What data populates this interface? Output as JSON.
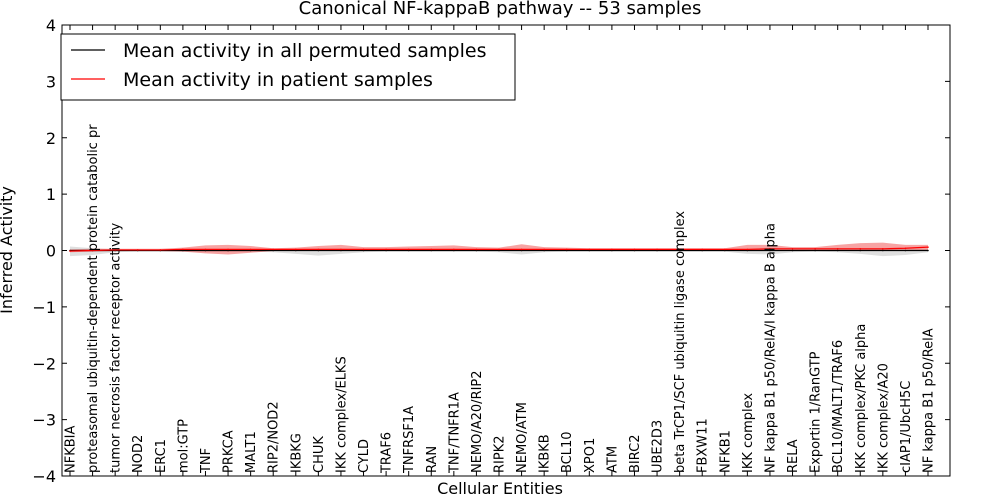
{
  "chart_data": {
    "type": "line",
    "title": "Canonical NF-kappaB pathway -- 53 samples",
    "xlabel": "Cellular Entities",
    "ylabel": "Inferred Activity",
    "ylim": [
      -4,
      4
    ],
    "yticks": [
      "4",
      "3",
      "2",
      "1",
      "0",
      "−1",
      "−2",
      "−3",
      "−4"
    ],
    "grid": false,
    "legend_position": "top-left",
    "categories": [
      "NFKBIA",
      "proteasomal ubiquitin-dependent protein catabolic pr",
      "tumor necrosis factor receptor activity",
      "NOD2",
      "ERC1",
      "mol:GTP",
      "TNF",
      "PRKCA",
      "MALT1",
      "RIP2/NOD2",
      "IKBKG",
      "CHUK",
      "IKK complex/ELKS",
      "CYLD",
      "TRAF6",
      "TNFRSF1A",
      "RAN",
      "TNF/TNFR1A",
      "NEMO/A20/RIP2",
      "RIPK2",
      "NEMO/ATM",
      "IKBKB",
      "BCL10",
      "XPO1",
      "ATM",
      "BIRC2",
      "UBE2D3",
      "beta TrCP1/SCF ubiquitin ligase complex",
      "FBXW11",
      "NFKB1",
      "IKK complex",
      "NF kappa B1 p50/RelA/I kappa B alpha",
      "RELA",
      "Exportin 1/RanGTP",
      "BCL10/MALT1/TRAF6",
      "IKK complex/PKC alpha",
      "IKK complex/A20",
      "cIAP1/UbcH5C",
      "NF kappa B1 p50/RelA"
    ],
    "series": [
      {
        "name": "Mean activity in all permuted samples",
        "color": "#000000",
        "values": [
          0,
          0,
          0,
          0,
          0,
          0,
          0,
          0,
          0,
          0,
          0,
          0,
          0,
          0,
          0,
          0,
          0,
          0,
          0,
          0,
          0,
          0,
          0,
          0,
          0,
          0,
          0,
          0,
          0,
          0,
          0,
          0,
          0,
          0,
          0,
          0,
          0,
          0,
          0
        ],
        "lower": [
          -0.1,
          -0.08,
          -0.03,
          -0.02,
          -0.02,
          -0.02,
          -0.02,
          -0.02,
          -0.02,
          -0.03,
          -0.06,
          -0.09,
          -0.06,
          -0.03,
          -0.02,
          -0.02,
          -0.02,
          -0.02,
          -0.02,
          -0.03,
          -0.07,
          -0.03,
          -0.02,
          -0.02,
          -0.02,
          -0.02,
          -0.02,
          -0.02,
          -0.02,
          -0.02,
          -0.06,
          -0.07,
          -0.03,
          -0.02,
          -0.03,
          -0.06,
          -0.1,
          -0.08,
          -0.03
        ],
        "upper": [
          0.07,
          0.04,
          0.02,
          0.02,
          0.02,
          0.02,
          0.02,
          0.02,
          0.02,
          0.02,
          0.02,
          0.03,
          0.03,
          0.02,
          0.02,
          0.02,
          0.02,
          0.02,
          0.02,
          0.02,
          0.02,
          0.02,
          0.02,
          0.02,
          0.02,
          0.02,
          0.02,
          0.02,
          0.02,
          0.02,
          0.02,
          0.02,
          0.02,
          0.02,
          0.02,
          0.02,
          0.02,
          0.02,
          0.02
        ]
      },
      {
        "name": "Mean activity in patient samples",
        "color": "#ff0000",
        "values": [
          -0.01,
          0,
          0.01,
          0.01,
          0.01,
          0.02,
          0.02,
          0.02,
          0.02,
          0.02,
          0.02,
          0.02,
          0.02,
          0.02,
          0.02,
          0.02,
          0.02,
          0.02,
          0.02,
          0.02,
          0.02,
          0.02,
          0.02,
          0.02,
          0.02,
          0.02,
          0.02,
          0.02,
          0.02,
          0.02,
          0.02,
          0.03,
          0.03,
          0.03,
          0.03,
          0.03,
          0.03,
          0.04,
          0.06
        ],
        "lower": [
          -0.03,
          -0.02,
          -0.01,
          -0.01,
          -0.01,
          -0.02,
          -0.05,
          -0.07,
          -0.04,
          -0.01,
          -0.01,
          -0.01,
          -0.01,
          -0.01,
          -0.01,
          -0.01,
          -0.01,
          -0.01,
          -0.01,
          -0.01,
          -0.01,
          -0.01,
          -0.01,
          -0.01,
          -0.01,
          -0.01,
          -0.01,
          -0.01,
          -0.01,
          -0.01,
          -0.01,
          -0.01,
          -0.01,
          -0.01,
          -0.01,
          -0.01,
          -0.01,
          -0.01,
          0.0
        ],
        "upper": [
          0.02,
          0.03,
          0.03,
          0.03,
          0.03,
          0.05,
          0.09,
          0.1,
          0.08,
          0.04,
          0.05,
          0.08,
          0.1,
          0.06,
          0.06,
          0.07,
          0.08,
          0.09,
          0.06,
          0.05,
          0.11,
          0.06,
          0.05,
          0.04,
          0.04,
          0.04,
          0.04,
          0.04,
          0.04,
          0.04,
          0.1,
          0.1,
          0.06,
          0.06,
          0.1,
          0.13,
          0.14,
          0.1,
          0.1
        ]
      }
    ]
  }
}
